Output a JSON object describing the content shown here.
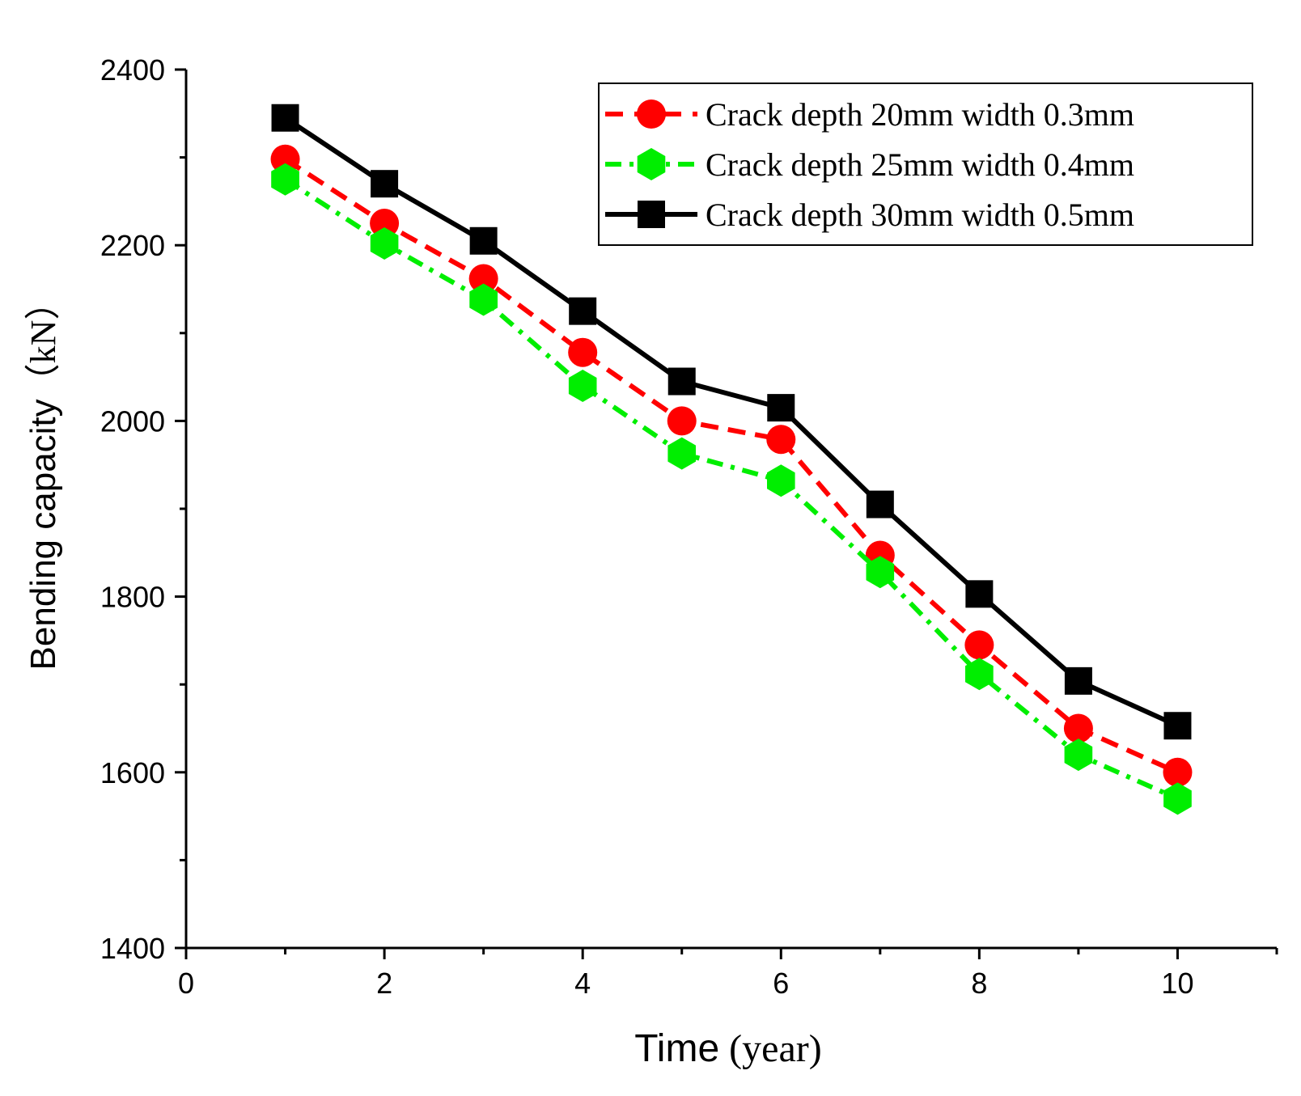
{
  "chart_data": {
    "type": "line",
    "title": "",
    "xlabel_sans": "Time",
    "xlabel_serif": " (year)",
    "ylabel_sans": "Bending capacity",
    "ylabel_serif": "（kN）",
    "xlim": [
      0,
      11
    ],
    "ylim": [
      1400,
      2400
    ],
    "xticks": [
      0,
      2,
      4,
      6,
      8,
      10
    ],
    "yticks": [
      1400,
      1600,
      1800,
      2000,
      2200,
      2400
    ],
    "x": [
      1,
      2,
      3,
      4,
      5,
      6,
      7,
      8,
      9,
      10
    ],
    "grid": false,
    "legend_position": "top-right",
    "series": [
      {
        "name": "Crack depth 20mm width 0.3mm",
        "values": [
          2298,
          2225,
          2162,
          2078,
          2000,
          1979,
          1847,
          1745,
          1650,
          1600
        ],
        "color": "#ff0000",
        "marker": "circle",
        "line_style": "dash"
      },
      {
        "name": "Crack depth 25mm width 0.4mm",
        "values": [
          2275,
          2202,
          2138,
          2040,
          1963,
          1932,
          1828,
          1712,
          1620,
          1570
        ],
        "color": "#00ee00",
        "marker": "hexagon",
        "line_style": "dash-dot"
      },
      {
        "name": "Crack depth 30mm width 0.5mm",
        "values": [
          2345,
          2270,
          2205,
          2125,
          2045,
          2015,
          1905,
          1803,
          1704,
          1653
        ],
        "color": "#000000",
        "marker": "square",
        "line_style": "solid"
      }
    ]
  }
}
